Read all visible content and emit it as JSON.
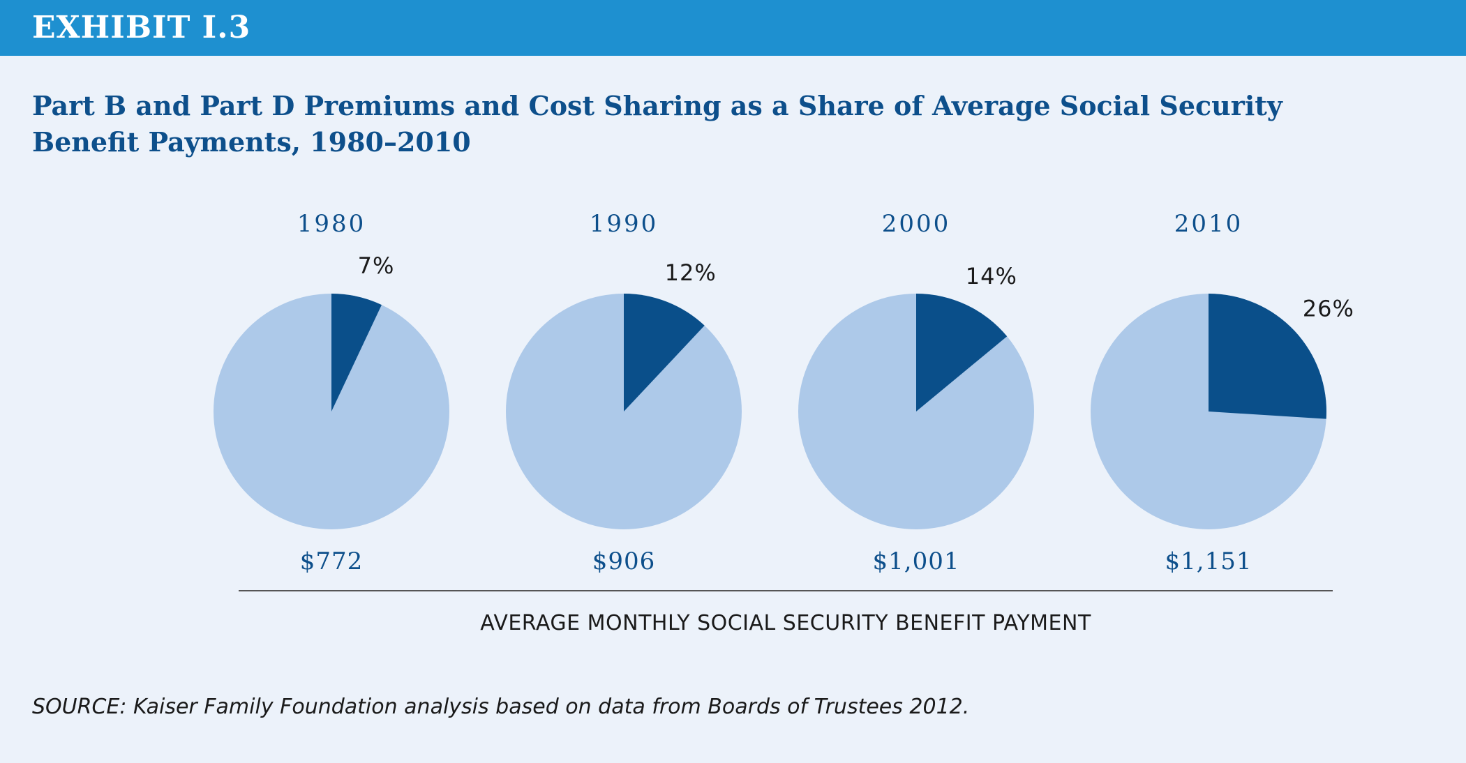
{
  "header": {
    "exhibit": "EXHIBIT I.3"
  },
  "colors": {
    "header_bar": "#1e90d0",
    "background": "#ecf2fa",
    "premium_share": "#0a4f8a",
    "remaining_share": "#adc9e9",
    "title_text": "#0d4f8b"
  },
  "chart_data": {
    "type": "pie",
    "title": "Part B and Part D Premiums and Cost Sharing as a Share of Average Social Security Benefit Payments, 1980–2010",
    "xlabel": "AVERAGE MONTHLY SOCIAL SECURITY BENEFIT PAYMENT",
    "pies": [
      {
        "year": "1980",
        "share": 7,
        "share_label": "7%",
        "benefit": "$772"
      },
      {
        "year": "1990",
        "share": 12,
        "share_label": "12%",
        "benefit": "$906"
      },
      {
        "year": "2000",
        "share": 14,
        "share_label": "14%",
        "benefit": "$1,001"
      },
      {
        "year": "2010",
        "share": 26,
        "share_label": "26%",
        "benefit": "$1,151"
      }
    ]
  },
  "source": "SOURCE:  Kaiser Family Foundation analysis based on data from Boards of Trustees 2012."
}
